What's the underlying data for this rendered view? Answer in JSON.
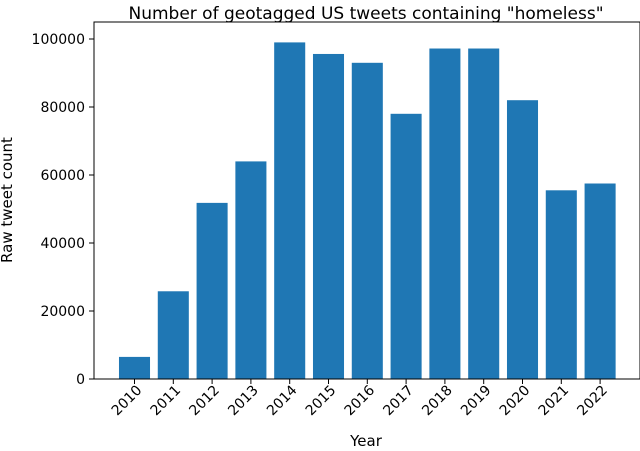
{
  "chart_data": {
    "type": "bar",
    "title": "Number of geotagged US tweets containing \"homeless\"",
    "xlabel": "Year",
    "ylabel": "Raw tweet count",
    "categories": [
      "2010",
      "2011",
      "2012",
      "2013",
      "2014",
      "2015",
      "2016",
      "2017",
      "2018",
      "2019",
      "2020",
      "2021",
      "2022"
    ],
    "values": [
      6500,
      25800,
      51800,
      64000,
      99000,
      95600,
      93000,
      78000,
      97200,
      97200,
      82000,
      55500,
      57500
    ],
    "ylim": [
      0,
      105000
    ],
    "yticks": [
      0,
      20000,
      40000,
      60000,
      80000,
      100000
    ],
    "bar_color": "#1f77b4",
    "grid": false,
    "legend": "none"
  }
}
